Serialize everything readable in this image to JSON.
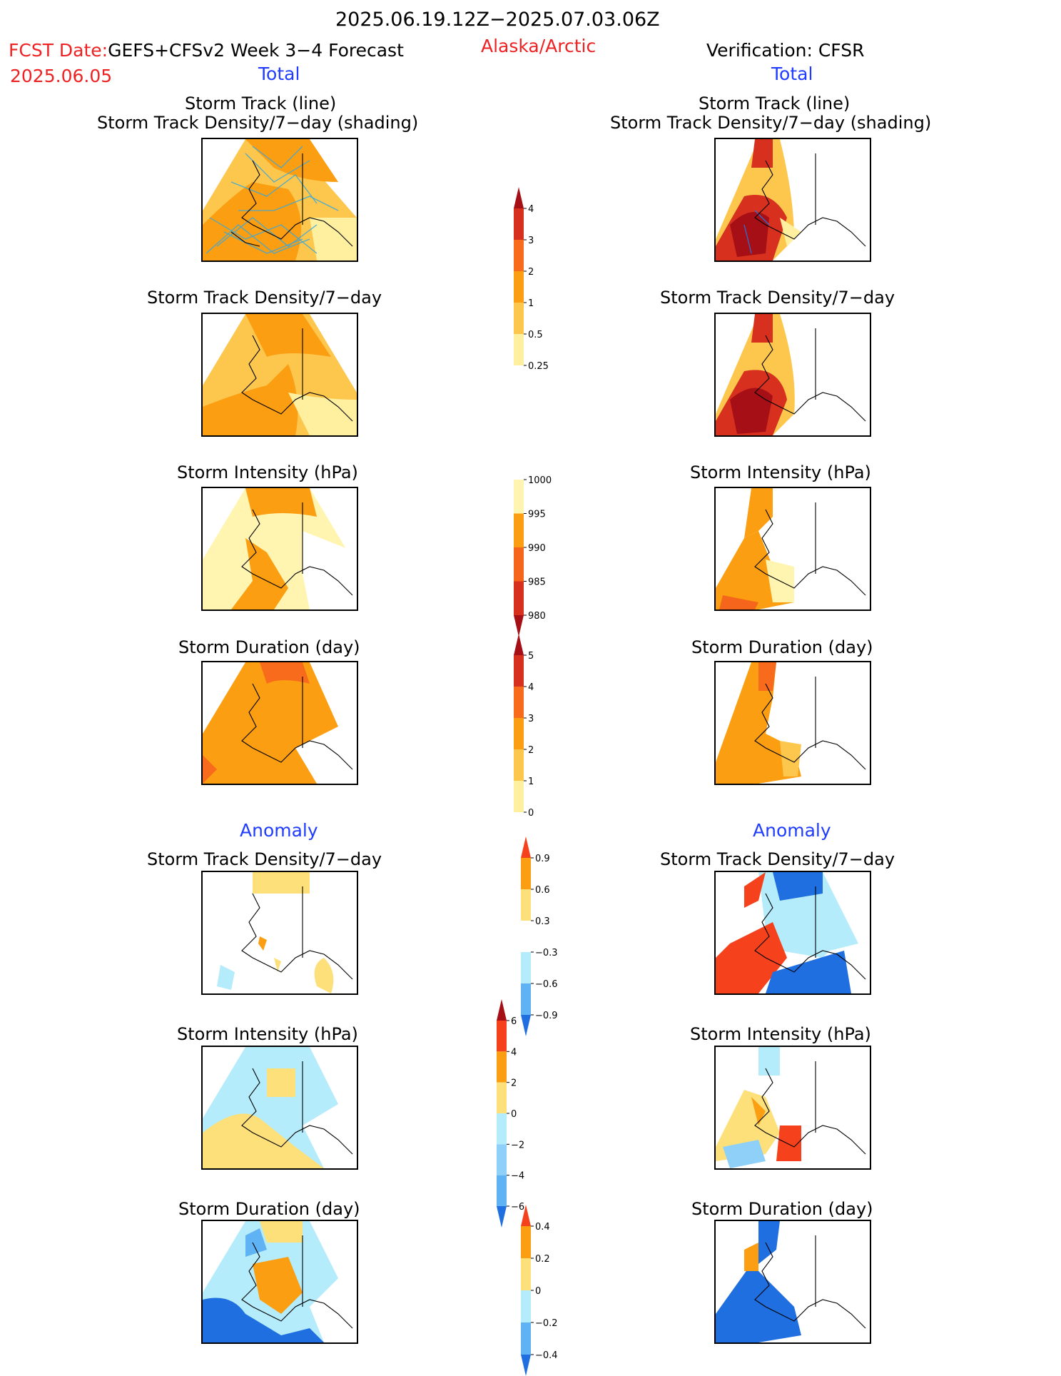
{
  "header": {
    "date_range": "2025.06.19.12Z−2025.07.03.06Z",
    "fcst_label": "FCST Date:",
    "fcst_model": "GEFS+CFSv2 Week 3−4 Forecast",
    "fcst_date": "2025.06.05",
    "region": "Alaska/Arctic",
    "verification": "Verification: CFSR",
    "left_section": "Total",
    "right_section": "Total",
    "left_anomaly": "Anomaly",
    "right_anomaly": "Anomaly"
  },
  "panel_titles": {
    "storm_track_line": "Storm Track (line)",
    "storm_track_shading": "Storm Track Density/7−day (shading)",
    "storm_track_density": "Storm Track Density/7−day",
    "storm_intensity": "Storm Intensity (hPa)",
    "storm_duration": "Storm Duration (day)"
  },
  "colorbars": {
    "density": {
      "labels": [
        "4",
        "3",
        "2",
        "1",
        "0.5",
        "0.25"
      ],
      "colors": [
        "#a50f15",
        "#d7301f",
        "#f86a1c",
        "#fb9e11",
        "#fdc74e",
        "#fff0a0",
        "#ffffff"
      ]
    },
    "intensity": {
      "labels": [
        "1000",
        "995",
        "990",
        "985",
        "980"
      ],
      "colors": [
        "#ffffff",
        "#fff4b0",
        "#fb9e11",
        "#f5661c",
        "#d7301f",
        "#a50f15"
      ]
    },
    "duration": {
      "labels": [
        "5",
        "4",
        "3",
        "2",
        "1",
        "0"
      ],
      "colors": [
        "#a50f15",
        "#d7301f",
        "#f86a1c",
        "#fb9e11",
        "#fdc74e",
        "#fff0a0",
        "#ffffff"
      ]
    },
    "anom_density": {
      "labels": [
        "0.9",
        "0.6",
        "0.3",
        "−0.3",
        "−0.6",
        "−0.9"
      ],
      "colors": [
        "#f5421c",
        "#fb9e11",
        "#fde07a",
        "#ffffff",
        "#b4ecfb",
        "#5fb2f4",
        "#1f6fe0"
      ]
    },
    "anom_intensity": {
      "labels": [
        "6",
        "4",
        "2",
        "0",
        "−2",
        "−4",
        "−6"
      ],
      "colors": [
        "#a50f15",
        "#f5421c",
        "#fb9e11",
        "#fde07a",
        "#b4ecfb",
        "#8fd0f8",
        "#5fb2f4",
        "#1f6fe0"
      ]
    },
    "anom_duration": {
      "labels": [
        "0.4",
        "0.2",
        "0",
        "−0.2",
        "−0.4"
      ],
      "colors": [
        "#f5421c",
        "#fb9e11",
        "#fde07a",
        "#b4ecfb",
        "#5fb2f4",
        "#1f6fe0"
      ]
    }
  }
}
